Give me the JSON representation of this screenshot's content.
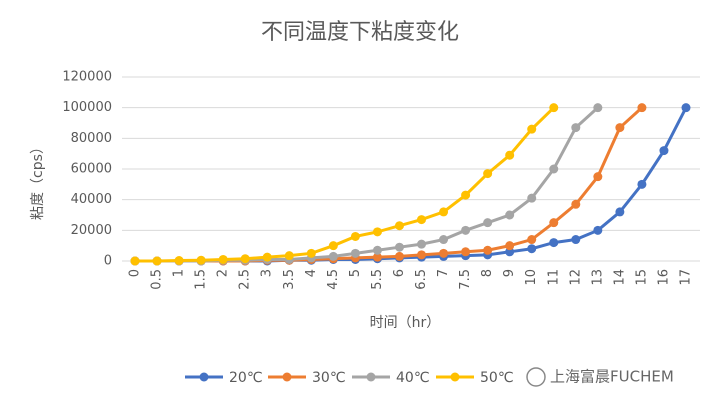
{
  "chart_data": {
    "type": "line",
    "title": "不同温度下粘度变化",
    "x_label": "时间（hr）",
    "y_label": "粘度（cps）",
    "categories": [
      "0",
      "0.5",
      "1",
      "1.5",
      "2",
      "2.5",
      "3",
      "3.5",
      "4",
      "4.5",
      "5",
      "5.5",
      "6",
      "6.5",
      "7",
      "7.5",
      "8",
      "9",
      "10",
      "11",
      "12",
      "13",
      "14",
      "15",
      "16",
      "17"
    ],
    "series": [
      {
        "name": "20℃",
        "color": "#4472c4",
        "values": [
          0,
          0,
          0,
          0,
          0,
          0,
          0,
          500,
          500,
          1000,
          1000,
          1500,
          2000,
          2500,
          3000,
          3500,
          4000,
          6000,
          8000,
          12000,
          14000,
          20000,
          32000,
          50000,
          72000,
          100000
        ]
      },
      {
        "name": "30℃",
        "color": "#ed7d31",
        "values": [
          0,
          0,
          0,
          0,
          0,
          0,
          500,
          500,
          1000,
          1500,
          2000,
          2500,
          3000,
          4000,
          5000,
          6000,
          7000,
          10000,
          14000,
          25000,
          37000,
          55000,
          87000,
          100000,
          null,
          null
        ]
      },
      {
        "name": "40℃",
        "color": "#a5a5a5",
        "values": [
          0,
          0,
          0,
          0,
          500,
          500,
          1000,
          1000,
          2000,
          3000,
          5000,
          7000,
          9000,
          11000,
          14000,
          20000,
          25000,
          30000,
          41000,
          60000,
          87000,
          100000,
          null,
          null,
          null,
          null
        ]
      },
      {
        "name": "50℃",
        "color": "#ffc000",
        "values": [
          0,
          0,
          300,
          500,
          1000,
          1500,
          2500,
          3500,
          5000,
          10000,
          16000,
          19000,
          23000,
          27000,
          32000,
          43000,
          57000,
          69000,
          86000,
          100000,
          null,
          null,
          null,
          null,
          null,
          null
        ]
      }
    ],
    "ylim": [
      0,
      120000
    ],
    "yticks": [
      0,
      20000,
      40000,
      60000,
      80000,
      100000,
      120000
    ],
    "grid": true,
    "legend": "bottom",
    "watermark": "上海富晨FUCHEM"
  }
}
